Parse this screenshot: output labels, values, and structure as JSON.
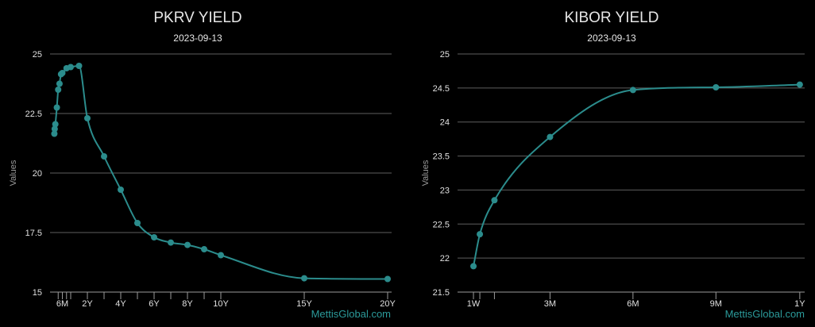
{
  "colors": {
    "series": "#2b8c8c",
    "credit": "#2b9a9a",
    "grid": "#5e5e5e"
  },
  "chart_data": [
    {
      "type": "line",
      "title": "PKRV YIELD",
      "subtitle": "2023-09-13",
      "xlabel": "",
      "ylabel": "Values",
      "ylim": [
        15,
        25
      ],
      "yticks": [
        15,
        17.5,
        20,
        22.5,
        25
      ],
      "ytick_labels": [
        "15",
        "17.5",
        "20",
        "22.5",
        "25"
      ],
      "xlim_years": [
        0,
        20
      ],
      "xticks": [
        {
          "x": 0.25,
          "label": ""
        },
        {
          "x": 0.5,
          "label": "6M"
        },
        {
          "x": 0.75,
          "label": ""
        },
        {
          "x": 1,
          "label": ""
        },
        {
          "x": 2,
          "label": "2Y"
        },
        {
          "x": 3,
          "label": ""
        },
        {
          "x": 4,
          "label": "4Y"
        },
        {
          "x": 5,
          "label": ""
        },
        {
          "x": 6,
          "label": "6Y"
        },
        {
          "x": 7,
          "label": ""
        },
        {
          "x": 8,
          "label": "8Y"
        },
        {
          "x": 9,
          "label": ""
        },
        {
          "x": 10,
          "label": "10Y"
        },
        {
          "x": 15,
          "label": "15Y"
        },
        {
          "x": 20,
          "label": "20Y"
        }
      ],
      "grid": "horizontal",
      "credit": "MettisGlobal.com",
      "series": [
        {
          "x": [
            0.02,
            0.04,
            0.08,
            0.17,
            0.25,
            0.33,
            0.42,
            0.5,
            0.75,
            1.0,
            1.5,
            2,
            3,
            4,
            5,
            6,
            7,
            8,
            9,
            10,
            15,
            20
          ],
          "values": [
            21.65,
            21.85,
            22.05,
            22.75,
            23.5,
            23.75,
            24.15,
            24.2,
            24.4,
            24.45,
            24.5,
            22.3,
            20.7,
            19.3,
            17.9,
            17.3,
            17.08,
            16.98,
            16.8,
            16.55,
            15.58,
            15.55
          ]
        }
      ]
    },
    {
      "type": "line",
      "title": "KIBOR YIELD",
      "subtitle": "2023-09-13",
      "xlabel": "",
      "ylabel": "Values",
      "ylim": [
        21.5,
        25
      ],
      "yticks": [
        21.5,
        22,
        22.5,
        23,
        23.5,
        24,
        24.5,
        25
      ],
      "ytick_labels": [
        "21.5",
        "22",
        "22.5",
        "23",
        "23.5",
        "24",
        "24.5",
        "25"
      ],
      "xlim_days": [
        0,
        366
      ],
      "xticks": [
        {
          "x": 7,
          "label": "1W"
        },
        {
          "x": 14,
          "label": ""
        },
        {
          "x": 30,
          "label": ""
        },
        {
          "x": 91,
          "label": "3M"
        },
        {
          "x": 182,
          "label": "6M"
        },
        {
          "x": 273,
          "label": "9M"
        },
        {
          "x": 365,
          "label": "1Y"
        }
      ],
      "grid": "horizontal",
      "credit": "MettisGlobal.com",
      "series": [
        {
          "x": [
            7,
            14,
            30,
            91,
            182,
            273,
            365
          ],
          "values": [
            21.88,
            22.35,
            22.85,
            23.78,
            24.47,
            24.51,
            24.55
          ]
        }
      ]
    }
  ]
}
